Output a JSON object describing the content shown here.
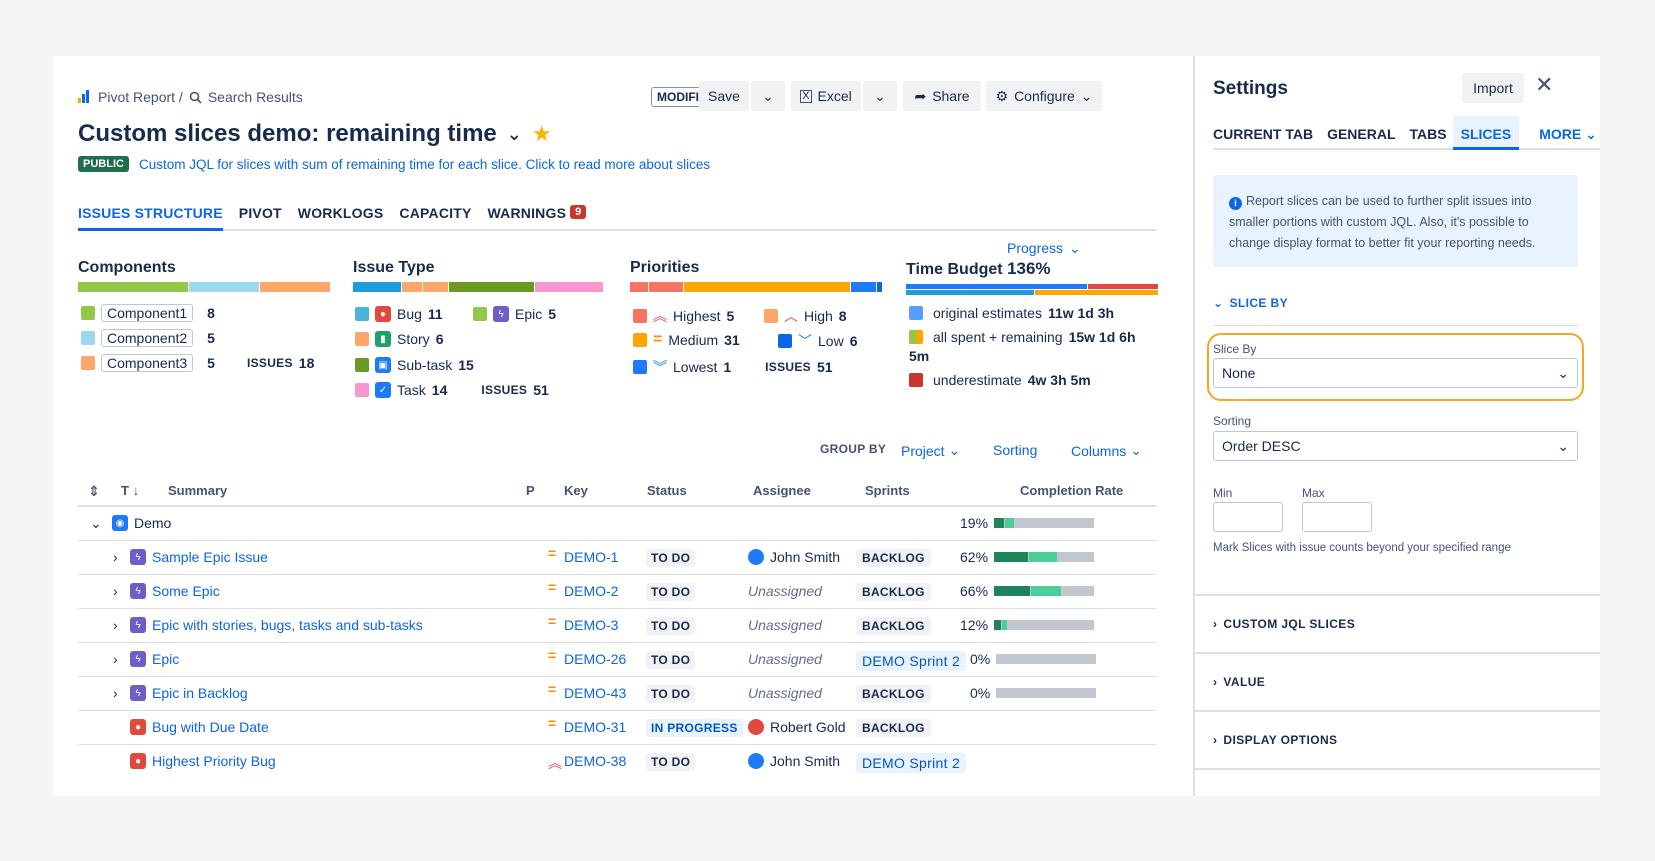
{
  "breadcrumb": {
    "root": "Pivot Report /",
    "current": "Search Results"
  },
  "header": {
    "modified": "MODIFIED",
    "save": "Save",
    "excel": "Excel",
    "share": "Share",
    "configure": "Configure"
  },
  "report": {
    "title": "Custom slices demo: remaining time",
    "public": "PUBLIC",
    "description": "Custom JQL for slices with sum of remaining time for each slice. Click to read more about slices"
  },
  "tabs": [
    {
      "label": "ISSUES STRUCTURE"
    },
    {
      "label": "PIVOT"
    },
    {
      "label": "WORKLOGS"
    },
    {
      "label": "CAPACITY"
    },
    {
      "label": "WARNINGS",
      "badge": "9"
    }
  ],
  "progress_toggle": "Progress",
  "summary": {
    "components": {
      "title": "Components",
      "items": [
        {
          "label": "Component1",
          "count": "8",
          "color": "#94c748"
        },
        {
          "label": "Component2",
          "count": "5",
          "color": "#9dd9ee"
        },
        {
          "label": "Component3",
          "count": "5",
          "color": "#fca700"
        }
      ],
      "issues_label": "ISSUES",
      "issues": "18"
    },
    "issue_type": {
      "title": "Issue Type",
      "items": [
        {
          "label": "Bug",
          "count": "11"
        },
        {
          "label": "Epic",
          "count": "5"
        },
        {
          "label": "Story",
          "count": "6"
        },
        {
          "label": "Sub-task",
          "count": "15"
        },
        {
          "label": "Task",
          "count": "14"
        }
      ],
      "issues_label": "ISSUES",
      "issues": "51"
    },
    "priorities": {
      "title": "Priorities",
      "items": [
        {
          "label": "Highest",
          "count": "5"
        },
        {
          "label": "High",
          "count": "8"
        },
        {
          "label": "Medium",
          "count": "31"
        },
        {
          "label": "Low",
          "count": "6"
        },
        {
          "label": "Lowest",
          "count": "1"
        }
      ],
      "issues_label": "ISSUES",
      "issues": "51"
    },
    "time_budget": {
      "title": "Time Budget",
      "percent": "136%",
      "items": [
        {
          "label": "original estimates",
          "value": "11w 1d 3h"
        },
        {
          "label": "all spent + remaining",
          "value": "15w 1d 6h",
          "value2": "5m"
        },
        {
          "label": "underestimate",
          "value": "4w 3h 5m"
        }
      ]
    }
  },
  "toolbar": {
    "group_by_label": "GROUP BY",
    "group_by": "Project",
    "sorting": "Sorting",
    "columns": "Columns"
  },
  "columns": {
    "t": "T",
    "summary": "Summary",
    "p": "P",
    "key": "Key",
    "status": "Status",
    "assignee": "Assignee",
    "sprints": "Sprints",
    "completion": "Completion Rate"
  },
  "rows": [
    {
      "summary": "Demo",
      "rate": "19%",
      "progress": 0.19
    },
    {
      "summary": "Sample Epic Issue",
      "key": "DEMO-1",
      "status": "TO DO",
      "assignee": "John Smith",
      "sprint": "BACKLOG",
      "rate": "62%",
      "progress": 0.62
    },
    {
      "summary": "Some Epic",
      "key": "DEMO-2",
      "status": "TO DO",
      "assignee": "Unassigned",
      "sprint": "BACKLOG",
      "rate": "66%",
      "progress": 0.66
    },
    {
      "summary": "Epic with stories, bugs, tasks and sub-tasks",
      "key": "DEMO-3",
      "status": "TO DO",
      "assignee": "Unassigned",
      "sprint": "BACKLOG",
      "rate": "12%",
      "progress": 0.12
    },
    {
      "summary": "Epic",
      "key": "DEMO-26",
      "status": "TO DO",
      "assignee": "Unassigned",
      "sprint": "DEMO Sprint 2",
      "rate": "0%",
      "progress": 0
    },
    {
      "summary": "Epic in Backlog",
      "key": "DEMO-43",
      "status": "TO DO",
      "assignee": "Unassigned",
      "sprint": "BACKLOG",
      "rate": "0%",
      "progress": 0
    },
    {
      "summary": "Bug with Due Date",
      "key": "DEMO-31",
      "status": "IN PROGRESS",
      "assignee": "Robert Gold",
      "sprint": "BACKLOG"
    },
    {
      "summary": "Highest Priority Bug",
      "key": "DEMO-38",
      "status": "TO DO",
      "assignee": "John Smith",
      "sprint": "DEMO Sprint 2"
    }
  ],
  "settings": {
    "title": "Settings",
    "import": "Import",
    "tabs": [
      "CURRENT TAB",
      "GENERAL",
      "TABS",
      "SLICES",
      "MORE"
    ],
    "info": "Report slices can be used to further split issues into smaller portions with custom JQL. Also, it's possible to change display format to better fit your reporting needs.",
    "slice_by_section": "SLICE BY",
    "slice_by_label": "Slice By",
    "slice_by_value": "None",
    "sorting_label": "Sorting",
    "sorting_value": "Order DESC",
    "min_label": "Min",
    "max_label": "Max",
    "hint": "Mark Slices with issue counts beyond your specified range",
    "sections": [
      "CUSTOM JQL SLICES",
      "VALUE",
      "DISPLAY OPTIONS"
    ]
  }
}
